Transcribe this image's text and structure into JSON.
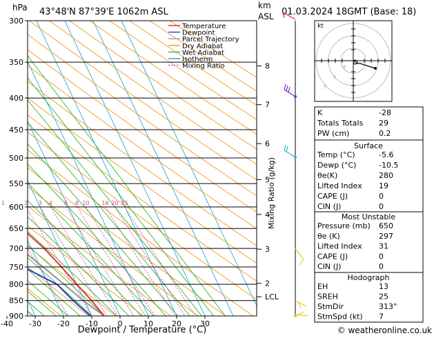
{
  "header": {
    "hpa_unit": "hPa",
    "location": "43°48'N  87°39'E  1062m  ASL",
    "km_unit": "km",
    "asl_unit": "ASL",
    "datetime": "01.03.2024  18GMT  (Base: 18)"
  },
  "legend": [
    {
      "label": "Temperature",
      "color": "#e8322a",
      "dash": ""
    },
    {
      "label": "Dewpoint",
      "color": "#1f3fd0",
      "dash": ""
    },
    {
      "label": "Parcel Trajectory",
      "color": "#9a9a9a",
      "dash": ""
    },
    {
      "label": "Dry Adiabat",
      "color": "#f29a1e",
      "dash": ""
    },
    {
      "label": "Wet Adiabat",
      "color": "#2fb82a",
      "dash": ""
    },
    {
      "label": "Isotherm",
      "color": "#29a7e0",
      "dash": ""
    },
    {
      "label": "Mixing Ratio",
      "color": "#d63aa0",
      "dash": "2,2"
    }
  ],
  "chart_data": {
    "type": "skew-t",
    "xlabel": "Dewpoint / Temperature (°C)",
    "ylabel_right": "Mixing Ratio (g/kg)",
    "y_unit": "hPa",
    "y_scale": "log",
    "ylim": [
      300,
      900
    ],
    "pressure_ticks": [
      300,
      350,
      400,
      450,
      500,
      550,
      600,
      650,
      700,
      750,
      800,
      850,
      900
    ],
    "temperature_ticks": [
      -40,
      -30,
      -20,
      -10,
      0,
      10,
      20,
      30
    ],
    "km_ticks": [
      {
        "label": "8",
        "p": 355
      },
      {
        "label": "7",
        "p": 410
      },
      {
        "label": "6",
        "p": 474
      },
      {
        "label": "5",
        "p": 542
      },
      {
        "label": "4",
        "p": 617
      },
      {
        "label": "3",
        "p": 702
      },
      {
        "label": "2",
        "p": 797
      },
      {
        "label": "LCL",
        "p": 838
      }
    ],
    "mixing_ratio_labels": [
      "1",
      "2",
      "3",
      "4",
      "6",
      "8",
      "10",
      "16",
      "20",
      "25"
    ],
    "series": [
      {
        "name": "Temperature",
        "color": "#e8322a",
        "points": [
          [
            900,
            -5.6
          ],
          [
            850,
            -7.5
          ],
          [
            800,
            -10
          ],
          [
            750,
            -12.5
          ],
          [
            700,
            -15.5
          ],
          [
            650,
            -20
          ],
          [
            600,
            -24
          ],
          [
            550,
            -29
          ],
          [
            500,
            -34
          ],
          [
            450,
            -40
          ],
          [
            400,
            -47
          ],
          [
            350,
            -54
          ],
          [
            300,
            -61
          ]
        ]
      },
      {
        "name": "Dewpoint",
        "color": "#1f3fd0",
        "points": [
          [
            900,
            -10.5
          ],
          [
            850,
            -14
          ],
          [
            800,
            -17
          ],
          [
            750,
            -26
          ],
          [
            700,
            -39
          ],
          [
            650,
            -52
          ],
          [
            600,
            -62
          ],
          [
            560,
            -64
          ],
          [
            500,
            -62
          ],
          [
            450,
            -61
          ],
          [
            400,
            -65
          ],
          [
            350,
            -71
          ],
          [
            300,
            -75
          ]
        ]
      },
      {
        "name": "Parcel Trajectory",
        "color": "#9a9a9a",
        "points": [
          [
            900,
            -5.6
          ],
          [
            850,
            -10.5
          ],
          [
            800,
            -14.5
          ],
          [
            750,
            -19
          ],
          [
            700,
            -24
          ],
          [
            650,
            -29
          ],
          [
            600,
            -34
          ],
          [
            550,
            -40
          ],
          [
            500,
            -46
          ],
          [
            450,
            -53
          ],
          [
            400,
            -60
          ],
          [
            350,
            -68
          ],
          [
            300,
            -76
          ]
        ]
      }
    ]
  },
  "hodograph": {
    "unit_label": "kt"
  },
  "indices": {
    "rows": [
      {
        "label": "K",
        "value": "-28"
      },
      {
        "label": "Totals Totals",
        "value": "29"
      },
      {
        "label": "PW (cm)",
        "value": "0.2"
      }
    ]
  },
  "surface": {
    "title": "Surface",
    "rows": [
      {
        "label": "Temp (°C)",
        "value": "-5.6"
      },
      {
        "label": "Dewp (°C)",
        "value": "-10.5"
      },
      {
        "label": "θe(K)",
        "value": "280"
      },
      {
        "label": "Lifted Index",
        "value": "19"
      },
      {
        "label": "CAPE (J)",
        "value": "0"
      },
      {
        "label": "CIN (J)",
        "value": "0"
      }
    ]
  },
  "most_unstable": {
    "title": "Most Unstable",
    "rows": [
      {
        "label": "Pressure (mb)",
        "value": "650"
      },
      {
        "label": "θe (K)",
        "value": "297"
      },
      {
        "label": "Lifted Index",
        "value": "31"
      },
      {
        "label": "CAPE (J)",
        "value": "0"
      },
      {
        "label": "CIN (J)",
        "value": "0"
      }
    ]
  },
  "hodograph_table": {
    "title": "Hodograph",
    "rows": [
      {
        "label": "EH",
        "value": "13"
      },
      {
        "label": "SREH",
        "value": "25"
      },
      {
        "label": "StmDir",
        "value": "313°"
      },
      {
        "label": "StmSpd (kt)",
        "value": "7"
      }
    ]
  },
  "footer": {
    "credit": "© weatheronline.co.uk"
  }
}
